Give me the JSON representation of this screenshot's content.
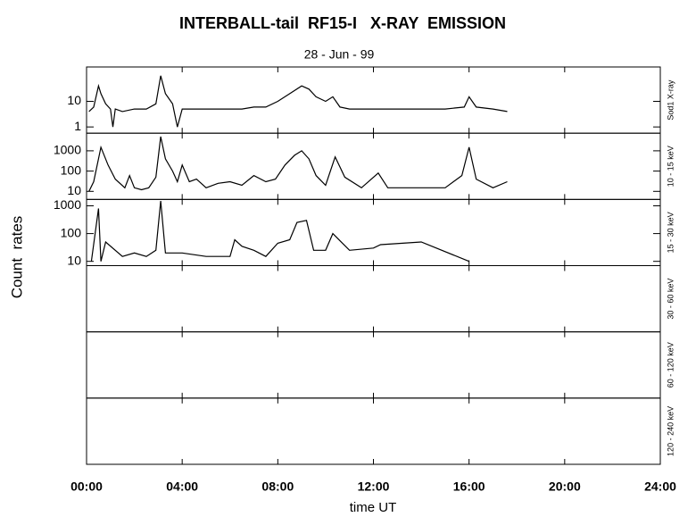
{
  "title": "INTERBALL-tail  RF15-I   X-RAY  EMISSION",
  "subtitle": "28 - Jun - 99",
  "ylabel": "Count  rates",
  "xlabel": "time UT",
  "xlim": [
    0,
    24
  ],
  "xticks": [
    {
      "value": 0,
      "label": "00:00"
    },
    {
      "value": 4,
      "label": "04:00"
    },
    {
      "value": 8,
      "label": "08:00"
    },
    {
      "value": 12,
      "label": "12:00"
    },
    {
      "value": 16,
      "label": "16:00"
    },
    {
      "value": 20,
      "label": "20:00"
    },
    {
      "value": 24,
      "label": "24:00"
    }
  ],
  "chart_data": [
    {
      "type": "line",
      "label": "Sod1 X-ray",
      "log": true,
      "ylim": [
        0.57,
        220
      ],
      "yticks": [
        1,
        10
      ],
      "color": "#000000",
      "x": [
        0.1,
        0.3,
        0.5,
        0.6,
        0.8,
        1.0,
        1.1,
        1.2,
        1.5,
        2.0,
        2.5,
        2.9,
        3.1,
        3.3,
        3.6,
        3.8,
        4.0,
        4.5,
        5.0,
        5.5,
        6.0,
        6.5,
        7.0,
        7.5,
        8.0,
        8.5,
        9.0,
        9.3,
        9.6,
        10.0,
        10.3,
        10.6,
        11.0,
        12.0,
        13.0,
        14.0,
        15.0,
        15.8,
        16.0,
        16.3,
        17.0,
        17.6
      ],
      "series": [
        {
          "values": [
            4,
            6,
            40,
            20,
            8,
            5,
            1,
            5,
            4,
            5,
            5,
            8,
            100,
            20,
            8,
            1,
            5,
            5,
            5,
            5,
            5,
            5,
            6,
            6,
            10,
            20,
            40,
            30,
            15,
            10,
            15,
            6,
            5,
            5,
            5,
            5,
            5,
            6,
            15,
            6,
            5,
            4
          ]
        }
      ]
    },
    {
      "type": "line",
      "label": "10 - 15 keV",
      "log": true,
      "ylim": [
        4,
        7400
      ],
      "yticks": [
        10,
        100,
        1000
      ],
      "color": "#000000",
      "x": [
        0.1,
        0.3,
        0.6,
        0.9,
        1.2,
        1.6,
        1.8,
        2.0,
        2.3,
        2.6,
        2.9,
        3.1,
        3.3,
        3.6,
        3.8,
        4.0,
        4.3,
        4.6,
        5.0,
        5.5,
        6.0,
        6.5,
        7.0,
        7.5,
        7.9,
        8.3,
        8.7,
        9.0,
        9.3,
        9.6,
        10.0,
        10.4,
        10.8,
        11.5,
        12.2,
        12.6,
        13.0,
        14.0,
        15.0,
        15.7,
        16.0,
        16.3,
        17.0,
        17.6
      ],
      "series": [
        {
          "values": [
            10,
            30,
            1500,
            200,
            40,
            15,
            60,
            15,
            12,
            15,
            50,
            5000,
            400,
            100,
            30,
            200,
            30,
            40,
            15,
            25,
            30,
            20,
            60,
            30,
            40,
            200,
            600,
            1000,
            400,
            60,
            20,
            500,
            50,
            15,
            80,
            15,
            15,
            15,
            15,
            60,
            1500,
            40,
            15,
            30
          ]
        }
      ]
    },
    {
      "type": "line",
      "label": "15 - 30 keV",
      "log": true,
      "ylim": [
        7,
        1700
      ],
      "yticks": [
        10,
        100,
        1000
      ],
      "color": "#000000",
      "x": [
        0.2,
        0.5,
        0.6,
        0.8,
        1.5,
        2.0,
        2.5,
        2.9,
        3.1,
        3.3,
        4.0,
        5.0,
        6.0,
        6.2,
        6.5,
        7.0,
        7.5,
        8.0,
        8.5,
        8.8,
        9.2,
        9.5,
        10.0,
        10.3,
        11.0,
        12.0,
        12.3,
        14.0,
        16.0
      ],
      "series": [
        {
          "values": [
            10,
            800,
            10,
            50,
            15,
            20,
            15,
            25,
            1500,
            20,
            20,
            15,
            15,
            60,
            35,
            25,
            15,
            45,
            60,
            250,
            300,
            25,
            25,
            100,
            25,
            30,
            40,
            50,
            10
          ]
        }
      ]
    },
    {
      "type": "line",
      "label": "30 - 60 keV"
    },
    {
      "type": "line",
      "label": "60 - 120 keV"
    },
    {
      "type": "line",
      "label": "120 - 240 keV"
    }
  ]
}
